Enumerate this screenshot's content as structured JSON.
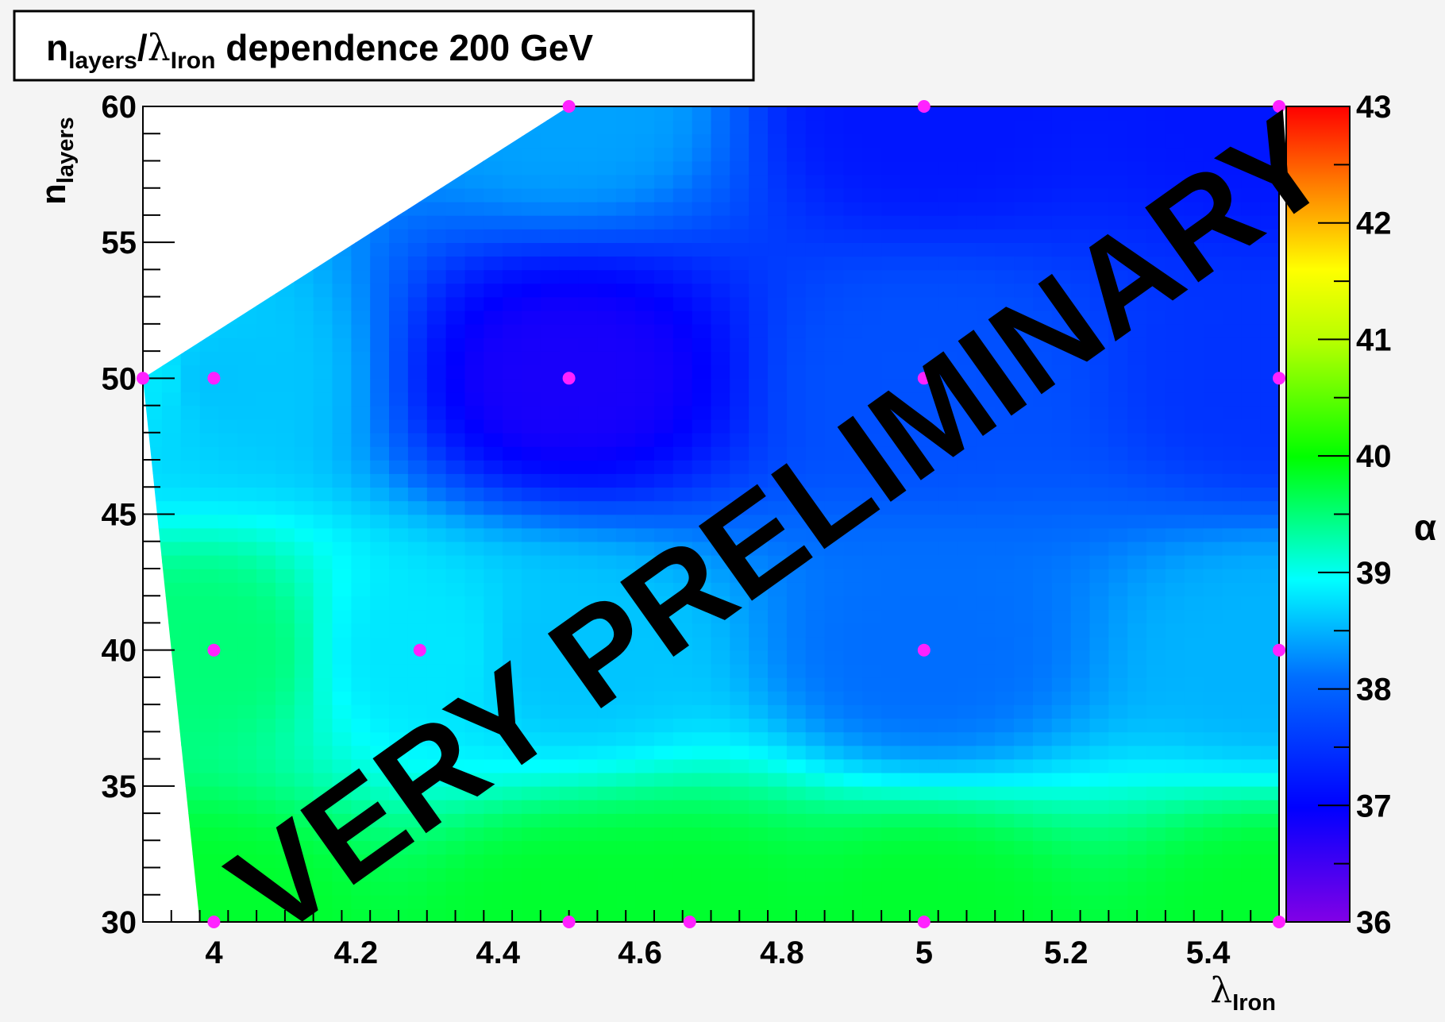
{
  "chart_data": {
    "type": "heatmap",
    "title": {
      "main": "n",
      "main_sub": "layers",
      "slash": "/",
      "lambda": "λ",
      "lambda_sub": "Iron",
      "rest": " dependence 200 GeV"
    },
    "xlabel": {
      "symbol": "λ",
      "sub": "Iron"
    },
    "ylabel": {
      "symbol": "n",
      "sub": "layers"
    },
    "zlabel": "α",
    "xlim": [
      3.9,
      5.5
    ],
    "ylim": [
      30,
      60
    ],
    "zlim": [
      36,
      43
    ],
    "x_ticks": [
      {
        "value": 4.0,
        "label": "4"
      },
      {
        "value": 4.2,
        "label": "4.2"
      },
      {
        "value": 4.4,
        "label": "4.4"
      },
      {
        "value": 4.6,
        "label": "4.6"
      },
      {
        "value": 4.8,
        "label": "4.8"
      },
      {
        "value": 5.0,
        "label": "5"
      },
      {
        "value": 5.2,
        "label": "5.2"
      },
      {
        "value": 5.4,
        "label": "5.4"
      }
    ],
    "y_ticks": [
      {
        "value": 30,
        "label": "30"
      },
      {
        "value": 35,
        "label": "35"
      },
      {
        "value": 40,
        "label": "40"
      },
      {
        "value": 45,
        "label": "45"
      },
      {
        "value": 50,
        "label": "50"
      },
      {
        "value": 55,
        "label": "55"
      },
      {
        "value": 60,
        "label": "60"
      }
    ],
    "z_ticks": [
      {
        "value": 36,
        "label": "36"
      },
      {
        "value": 37,
        "label": "37"
      },
      {
        "value": 38,
        "label": "38"
      },
      {
        "value": 39,
        "label": "39"
      },
      {
        "value": 40,
        "label": "40"
      },
      {
        "value": 41,
        "label": "41"
      },
      {
        "value": 42,
        "label": "42"
      },
      {
        "value": 43,
        "label": "43"
      }
    ],
    "grid": false,
    "colormap": "rainbow (violet → blue → cyan → green → yellow → red)",
    "marker_color": "#ff22ff",
    "points": [
      {
        "x": 3.9,
        "y": 50,
        "z": 38.8
      },
      {
        "x": 4.0,
        "y": 50,
        "z": 38.6
      },
      {
        "x": 4.5,
        "y": 50,
        "z": 36.8
      },
      {
        "x": 5.0,
        "y": 50,
        "z": 37.8
      },
      {
        "x": 5.5,
        "y": 50,
        "z": 37.5
      },
      {
        "x": 4.5,
        "y": 60,
        "z": 38.4
      },
      {
        "x": 5.0,
        "y": 60,
        "z": 37.2
      },
      {
        "x": 5.5,
        "y": 60,
        "z": 37.2
      },
      {
        "x": 4.0,
        "y": 40,
        "z": 39.5
      },
      {
        "x": 4.29,
        "y": 40,
        "z": 38.8
      },
      {
        "x": 4.5,
        "y": 40,
        "z": 38.6
      },
      {
        "x": 5.0,
        "y": 40,
        "z": 38.1
      },
      {
        "x": 5.5,
        "y": 40,
        "z": 38.5
      },
      {
        "x": 4.0,
        "y": 30,
        "z": 39.8
      },
      {
        "x": 4.5,
        "y": 30,
        "z": 39.8
      },
      {
        "x": 4.67,
        "y": 30,
        "z": 39.8
      },
      {
        "x": 5.0,
        "y": 30,
        "z": 39.8
      },
      {
        "x": 5.5,
        "y": 30,
        "z": 39.8
      }
    ],
    "hull": [
      {
        "x": 3.9,
        "y": 50
      },
      {
        "x": 4.5,
        "y": 60
      },
      {
        "x": 5.5,
        "y": 60
      },
      {
        "x": 5.5,
        "y": 30
      },
      {
        "x": 3.98,
        "y": 30
      },
      {
        "x": 3.9,
        "y": 50
      }
    ],
    "watermark": "VERY PRELIMINARY"
  }
}
